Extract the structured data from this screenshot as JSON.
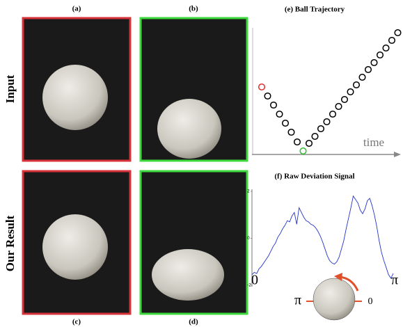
{
  "panels": {
    "a": "(a)",
    "b": "(b)",
    "c": "(c)",
    "d": "(d)"
  },
  "rows": {
    "input": "Input",
    "result": "Our Result"
  },
  "trajectory": {
    "title": "(e)  Ball Trajectory",
    "axis_label": "time",
    "values": [
      92,
      79,
      66,
      53,
      40,
      27,
      13,
      0,
      11,
      21,
      32,
      42,
      53,
      64,
      74,
      85,
      95,
      106,
      117,
      127,
      138,
      148,
      159,
      170
    ],
    "color": "#000000",
    "highlights": [
      {
        "index": 0,
        "color": "#e03030"
      },
      {
        "index": 7,
        "color": "#30c030"
      }
    ]
  },
  "deviation": {
    "title": "(f) Raw Deviation Signal",
    "color": "#2233cc",
    "ylim": [
      -2,
      2
    ],
    "yticks": [
      2,
      0,
      -2
    ],
    "x_start": "0",
    "x_end": "π",
    "values": [
      -1.55,
      -1.45,
      -1.5,
      -1.3,
      -1.2,
      -1.05,
      -0.9,
      -0.75,
      -0.55,
      -0.35,
      -0.2,
      0.05,
      0.2,
      0.4,
      0.55,
      0.75,
      0.7,
      0.95,
      1.1,
      0.6,
      1.3,
      1.1,
      0.9,
      0.75,
      0.7,
      0.6,
      0.55,
      0.45,
      0.3,
      0.1,
      -0.15,
      -0.45,
      -0.75,
      -0.95,
      -1.05,
      -1.1,
      -1.0,
      -0.8,
      -0.45,
      -0.1,
      0.4,
      0.85,
      1.3,
      1.8,
      1.65,
      1.5,
      1.2,
      1.05,
      1.25,
      1.6,
      1.7,
      1.4,
      1.0,
      0.5,
      -0.1,
      -0.6,
      -0.95,
      -1.25,
      -1.55,
      -1.7,
      -1.5
    ]
  },
  "dial": {
    "left": "π",
    "right": "0"
  }
}
